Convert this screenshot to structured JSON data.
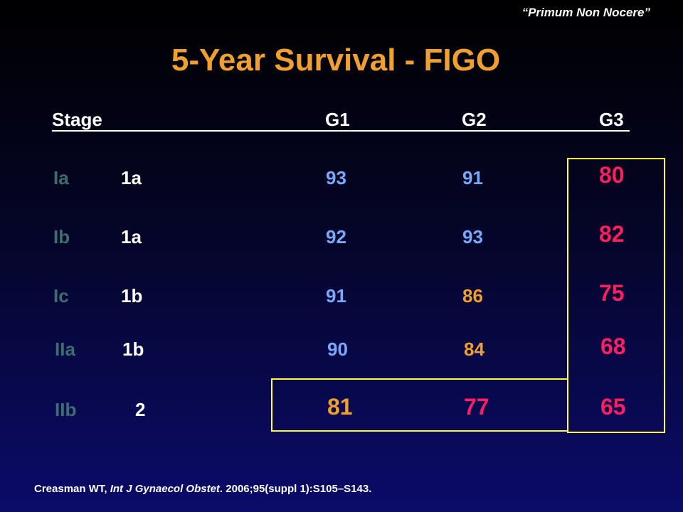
{
  "motto": "“Primum Non Nocere”",
  "title": "5-Year Survival - FIGO",
  "headers": {
    "stage": "Stage",
    "g1": "G1",
    "g2": "G2",
    "g3": "G3"
  },
  "rows": [
    {
      "stage": "Ia",
      "figo": "1a",
      "g1": "93",
      "g2": "91",
      "g3": "80"
    },
    {
      "stage": "Ib",
      "figo": "1a",
      "g1": "92",
      "g2": "93",
      "g3": "82"
    },
    {
      "stage": "Ic",
      "figo": "1b",
      "g1": "91",
      "g2": "86",
      "g3": "75"
    },
    {
      "stage": "IIa",
      "figo": "1b",
      "g1": "90",
      "g2": "84",
      "g3": "68"
    },
    {
      "stage": "IIb",
      "figo": "2",
      "g1": "81",
      "g2": "77",
      "g3": "65"
    }
  ],
  "colors": {
    "stage": "#3d6e70",
    "blue": "#7aa8ff",
    "orange": "#f0a030",
    "red": "#ff2060",
    "box": "#ffff3c"
  },
  "citation": {
    "author": "Creasman WT, ",
    "journal": "Int J Gynaecol Obstet",
    "rest": ". 2006;95(suppl 1):S105–S143."
  }
}
